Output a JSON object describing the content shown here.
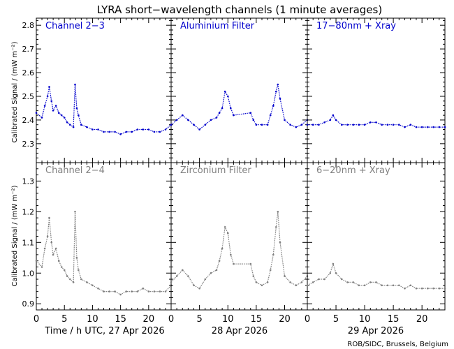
{
  "title": "LYRA short−wavelength channels (1 minute averages)",
  "ylabel_top": "Calibrated Signal / (mW m⁻²)",
  "ylabel_bottom": "Calibrated Signal / (mW m⁻²)",
  "xlabels": [
    "Time / h UTC, 27 Apr 2026",
    "28 Apr 2026",
    "29 Apr 2026"
  ],
  "credit": "ROB/SIDC, Brussels, Belgium",
  "colors": {
    "top_series": "#0000cc",
    "bottom_series": "#808080",
    "axes": "#000000"
  },
  "chart_data": [
    {
      "type": "scatter",
      "panel_label": "Channel 2−3",
      "x_range": [
        0,
        24
      ],
      "ylim": [
        2.22,
        2.83
      ],
      "xticks": [
        0,
        5,
        10,
        15,
        20
      ],
      "yticks": [
        2.3,
        2.4,
        2.5,
        2.6,
        2.7,
        2.8
      ],
      "x": [
        0,
        1,
        1.5,
        2,
        2.3,
        2.7,
        3,
        3.5,
        4,
        4.5,
        5,
        5.5,
        6,
        6.6,
        6.9,
        7.2,
        7.5,
        8,
        9,
        10,
        11,
        12,
        13,
        14,
        15,
        16,
        17,
        18,
        19,
        20,
        21,
        22,
        23,
        24
      ],
      "y": [
        2.43,
        2.41,
        2.46,
        2.5,
        2.54,
        2.48,
        2.44,
        2.46,
        2.43,
        2.42,
        2.41,
        2.39,
        2.38,
        2.37,
        2.55,
        2.45,
        2.42,
        2.38,
        2.37,
        2.36,
        2.36,
        2.35,
        2.35,
        2.35,
        2.34,
        2.35,
        2.35,
        2.36,
        2.36,
        2.36,
        2.35,
        2.35,
        2.36,
        2.38
      ]
    },
    {
      "type": "scatter",
      "panel_label": "Aluminium Filter",
      "x_range": [
        0,
        24
      ],
      "ylim": [
        2.22,
        2.83
      ],
      "xticks": [
        0,
        5,
        10,
        15,
        20
      ],
      "yticks": [
        2.3,
        2.4,
        2.5,
        2.6,
        2.7,
        2.8
      ],
      "x": [
        0,
        1,
        2,
        3,
        4,
        5,
        6,
        7,
        8,
        8.5,
        9,
        9.5,
        10,
        10.5,
        11,
        14,
        14.5,
        15,
        16,
        17,
        17.5,
        18,
        18.5,
        18.8,
        19.2,
        20,
        21,
        22,
        23,
        24
      ],
      "y": [
        2.38,
        2.4,
        2.42,
        2.4,
        2.38,
        2.36,
        2.38,
        2.4,
        2.41,
        2.43,
        2.45,
        2.52,
        2.5,
        2.45,
        2.42,
        2.43,
        2.4,
        2.38,
        2.38,
        2.38,
        2.42,
        2.46,
        2.52,
        2.55,
        2.49,
        2.4,
        2.38,
        2.37,
        2.38,
        2.4
      ]
    },
    {
      "type": "scatter",
      "panel_label": "17−80nm + Xray",
      "x_range": [
        0,
        24
      ],
      "ylim": [
        2.22,
        2.83
      ],
      "xticks": [
        0,
        5,
        10,
        15,
        20
      ],
      "yticks": [
        2.3,
        2.4,
        2.5,
        2.6,
        2.7,
        2.8
      ],
      "x": [
        0,
        1,
        2,
        3,
        4,
        4.5,
        5,
        6,
        7,
        8,
        9,
        10,
        11,
        12,
        13,
        14,
        15,
        16,
        17,
        18,
        19,
        20,
        21,
        22,
        23,
        24
      ],
      "y": [
        2.38,
        2.38,
        2.38,
        2.39,
        2.4,
        2.42,
        2.4,
        2.38,
        2.38,
        2.38,
        2.38,
        2.38,
        2.39,
        2.39,
        2.38,
        2.38,
        2.38,
        2.38,
        2.37,
        2.38,
        2.37,
        2.37,
        2.37,
        2.37,
        2.37,
        2.37
      ]
    },
    {
      "type": "scatter",
      "panel_label": "Channel 2−4",
      "x_range": [
        0,
        24
      ],
      "ylim": [
        0.88,
        1.36
      ],
      "xticks": [
        0,
        5,
        10,
        15,
        20
      ],
      "yticks": [
        0.9,
        1.0,
        1.1,
        1.2,
        1.3
      ],
      "x": [
        0,
        1,
        1.5,
        2,
        2.3,
        2.7,
        3,
        3.5,
        4,
        4.5,
        5,
        5.5,
        6,
        6.6,
        6.9,
        7.2,
        7.5,
        8,
        9,
        10,
        11,
        12,
        13,
        14,
        15,
        16,
        17,
        18,
        19,
        20,
        21,
        22,
        23,
        24
      ],
      "y": [
        1.04,
        1.02,
        1.08,
        1.12,
        1.18,
        1.1,
        1.06,
        1.08,
        1.04,
        1.02,
        1.01,
        0.99,
        0.98,
        0.97,
        1.2,
        1.05,
        1.01,
        0.98,
        0.97,
        0.96,
        0.95,
        0.94,
        0.94,
        0.94,
        0.93,
        0.94,
        0.94,
        0.94,
        0.95,
        0.94,
        0.94,
        0.94,
        0.94,
        0.96
      ]
    },
    {
      "type": "scatter",
      "panel_label": "Zirconium Filter",
      "x_range": [
        0,
        24
      ],
      "ylim": [
        0.88,
        1.36
      ],
      "xticks": [
        0,
        5,
        10,
        15,
        20
      ],
      "yticks": [
        0.9,
        1.0,
        1.1,
        1.2,
        1.3
      ],
      "x": [
        0,
        1,
        2,
        3,
        4,
        5,
        6,
        7,
        8,
        8.5,
        9,
        9.5,
        10,
        10.5,
        11,
        14,
        14.5,
        15,
        16,
        17,
        17.5,
        18,
        18.5,
        18.8,
        19.2,
        20,
        21,
        22,
        23,
        24
      ],
      "y": [
        0.97,
        0.99,
        1.01,
        0.99,
        0.96,
        0.95,
        0.98,
        1.0,
        1.01,
        1.04,
        1.08,
        1.15,
        1.13,
        1.06,
        1.03,
        1.03,
        0.99,
        0.97,
        0.96,
        0.97,
        1.01,
        1.06,
        1.15,
        1.2,
        1.1,
        0.99,
        0.97,
        0.96,
        0.97,
        0.99
      ]
    },
    {
      "type": "scatter",
      "panel_label": "6−20nm + Xray",
      "x_range": [
        0,
        24
      ],
      "ylim": [
        0.88,
        1.36
      ],
      "xticks": [
        0,
        5,
        10,
        15,
        20
      ],
      "yticks": [
        0.9,
        1.0,
        1.1,
        1.2,
        1.3
      ],
      "x": [
        0,
        1,
        2,
        3,
        4,
        4.5,
        5,
        6,
        7,
        8,
        9,
        10,
        11,
        12,
        13,
        14,
        15,
        16,
        17,
        18,
        19,
        20,
        21,
        22,
        23,
        24
      ],
      "y": [
        0.96,
        0.97,
        0.98,
        0.98,
        1.0,
        1.03,
        1.0,
        0.98,
        0.97,
        0.97,
        0.96,
        0.96,
        0.97,
        0.97,
        0.96,
        0.96,
        0.96,
        0.96,
        0.95,
        0.96,
        0.95,
        0.95,
        0.95,
        0.95,
        0.95,
        0.95
      ]
    }
  ]
}
